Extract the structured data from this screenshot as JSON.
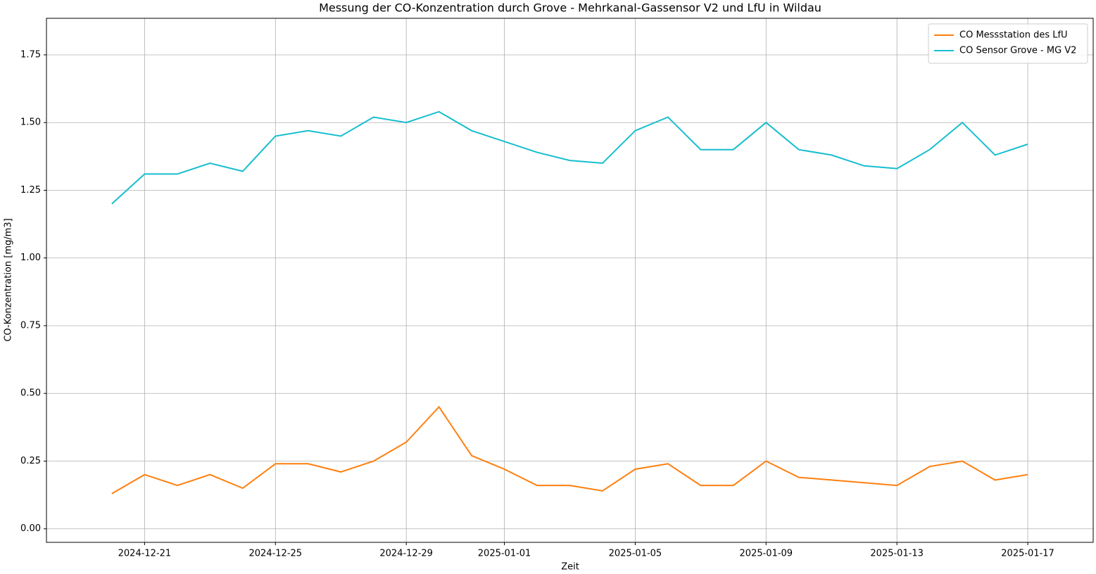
{
  "chart_data": {
    "type": "line",
    "title": "Messung der CO-Konzentration durch Grove - Mehrkanal-Gassensor V2 und LfU in Wildau",
    "x_label": "Zeit",
    "y_label": "CO-Konzentration [mg/m3]",
    "x": [
      "2024-12-20",
      "2024-12-21",
      "2024-12-22",
      "2024-12-23",
      "2024-12-24",
      "2024-12-25",
      "2024-12-26",
      "2024-12-27",
      "2024-12-28",
      "2024-12-29",
      "2024-12-30",
      "2024-12-31",
      "2025-01-01",
      "2025-01-02",
      "2025-01-03",
      "2025-01-04",
      "2025-01-05",
      "2025-01-06",
      "2025-01-07",
      "2025-01-08",
      "2025-01-09",
      "2025-01-10",
      "2025-01-11",
      "2025-01-12",
      "2025-01-13",
      "2025-01-14",
      "2025-01-15",
      "2025-01-16",
      "2025-01-17"
    ],
    "series": [
      {
        "name": "CO Messstation des LfU",
        "color": "#ff7f0e",
        "values": [
          0.13,
          0.2,
          0.16,
          0.2,
          0.15,
          0.24,
          0.24,
          0.21,
          0.25,
          0.32,
          0.45,
          0.27,
          0.22,
          0.16,
          0.16,
          0.14,
          0.22,
          0.24,
          0.16,
          0.16,
          0.25,
          0.19,
          0.18,
          0.17,
          0.16,
          0.23,
          0.25,
          0.18,
          0.2
        ]
      },
      {
        "name": "CO Sensor Grove - MG V2",
        "color": "#17becf",
        "values": [
          1.2,
          1.31,
          1.31,
          1.35,
          1.32,
          1.45,
          1.47,
          1.45,
          1.52,
          1.5,
          1.54,
          1.47,
          1.43,
          1.39,
          1.36,
          1.35,
          1.47,
          1.52,
          1.4,
          1.4,
          1.5,
          1.4,
          1.38,
          1.34,
          1.33,
          1.4,
          1.5,
          1.38,
          1.42
        ]
      }
    ],
    "xlim": [
      "2024-12-18",
      "2025-01-19"
    ],
    "xticks": [
      "2024-12-21",
      "2024-12-25",
      "2024-12-29",
      "2025-01-01",
      "2025-01-05",
      "2025-01-09",
      "2025-01-13",
      "2025-01-17"
    ],
    "ylim": [
      -0.05,
      1.885
    ],
    "yticks": [
      {
        "value": 0,
        "label": "0.00"
      },
      {
        "value": 0.25,
        "label": "0.25"
      },
      {
        "value": 0.5,
        "label": "0.50"
      },
      {
        "value": 0.75,
        "label": "0.75"
      },
      {
        "value": 1,
        "label": "1.00"
      },
      {
        "value": 1.25,
        "label": "1.25"
      },
      {
        "value": 1.5,
        "label": "1.50"
      },
      {
        "value": 1.75,
        "label": "1.75"
      }
    ],
    "grid": true,
    "legend": "upper right"
  }
}
